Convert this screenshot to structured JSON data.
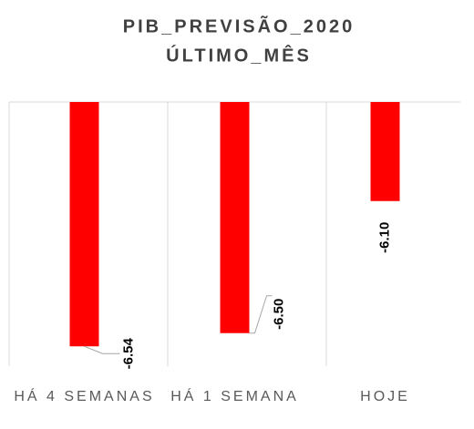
{
  "chart_data": {
    "type": "bar",
    "title": [
      "PIB_PREVISÃO_2020",
      "ÚLTIMO_MÊS"
    ],
    "categories": [
      "HÁ 4 SEMANAS",
      "HÁ 1 SEMANA",
      "HOJE"
    ],
    "values": [
      -6.54,
      -6.5,
      -6.1
    ],
    "value_labels": [
      "-6.54",
      "-6.50",
      "-6.10"
    ],
    "color": "#ff0000",
    "ylim": [
      -6.6,
      -5.8
    ]
  }
}
